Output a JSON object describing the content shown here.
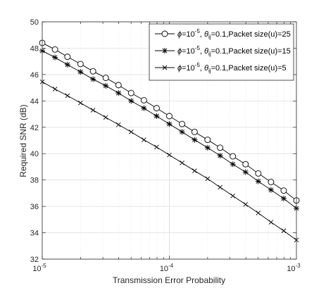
{
  "chart_data": {
    "type": "line",
    "xscale": "log",
    "xlabel": "Transmission Error Probability",
    "ylabel": "Required SNR (dB)",
    "xlim": [
      1e-05,
      0.001
    ],
    "ylim": [
      32,
      50
    ],
    "xticks": [
      1e-05,
      0.0001,
      0.001
    ],
    "xtick_labels": [
      {
        "base": "10",
        "exp": "-5"
      },
      {
        "base": "10",
        "exp": "-4"
      },
      {
        "base": "10",
        "exp": "-3"
      }
    ],
    "yticks": [
      32,
      34,
      36,
      38,
      40,
      42,
      44,
      46,
      48,
      50
    ],
    "ytick_labels": [
      "32",
      "34",
      "36",
      "38",
      "40",
      "42",
      "44",
      "46",
      "48",
      "50"
    ],
    "grid": true,
    "legend_position": "top-right",
    "x": [
      1e-05,
      1.26e-05,
      1.58e-05,
      2e-05,
      2.51e-05,
      3.16e-05,
      3.98e-05,
      5.01e-05,
      6.31e-05,
      7.94e-05,
      0.0001,
      0.000126,
      0.000158,
      0.0002,
      0.000251,
      0.000316,
      0.000398,
      0.000501,
      0.000631,
      0.000794,
      0.001
    ],
    "series": [
      {
        "legend": {
          "phi_base": "10",
          "phi_exp": "-5",
          "theta_sub": "ij",
          "rest": "=0.1,Packet size(u)=25"
        },
        "marker": "circle",
        "values": [
          48.4,
          47.9,
          47.35,
          46.8,
          46.25,
          45.75,
          45.2,
          44.6,
          44.05,
          43.45,
          42.85,
          42.25,
          41.65,
          41.05,
          40.45,
          39.8,
          39.2,
          38.5,
          37.85,
          37.2,
          36.45
        ]
      },
      {
        "legend": {
          "phi_base": "10",
          "phi_exp": "-5",
          "theta_sub": "ij",
          "rest": "=0.1,Packet size(u)=15"
        },
        "marker": "star",
        "values": [
          47.8,
          47.3,
          46.75,
          46.2,
          45.65,
          45.15,
          44.6,
          44.0,
          43.45,
          42.85,
          42.25,
          41.65,
          41.05,
          40.45,
          39.85,
          39.2,
          38.6,
          37.9,
          37.25,
          36.6,
          35.85
        ]
      },
      {
        "legend": {
          "phi_base": "10",
          "phi_exp": "-5",
          "theta_sub": "ij",
          "rest": "=0.1,Packet size(u)=5"
        },
        "marker": "x",
        "values": [
          45.45,
          44.9,
          44.4,
          43.85,
          43.3,
          42.75,
          42.2,
          41.65,
          41.05,
          40.5,
          39.9,
          39.3,
          38.7,
          38.1,
          37.45,
          36.8,
          36.15,
          35.5,
          34.8,
          34.15,
          33.45
        ]
      }
    ]
  }
}
